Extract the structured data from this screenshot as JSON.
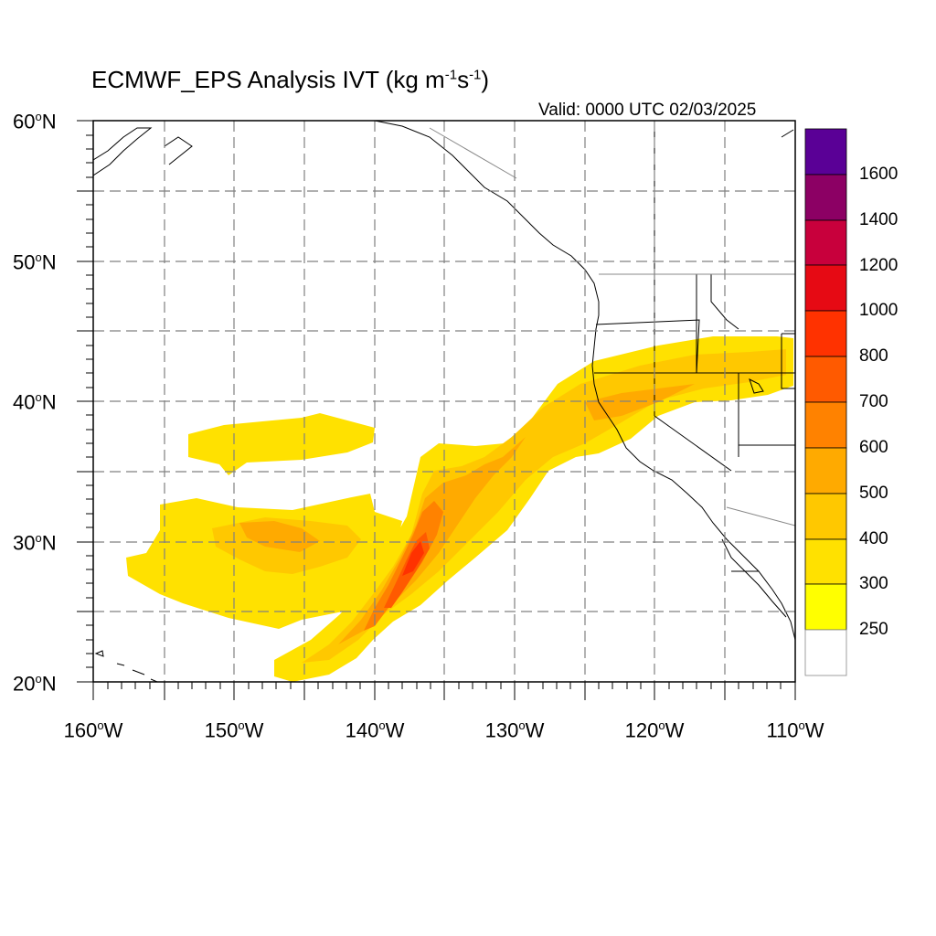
{
  "title": {
    "main": "ECMWF_EPS Analysis IVT (kg m",
    "exp1": "-1",
    "mid": "s",
    "exp2": "-1",
    "close": ")"
  },
  "valid_text": "Valid: 0000 UTC 02/03/2025",
  "lat_labels": [
    {
      "value": "60",
      "deg": "o",
      "hemi": "N"
    },
    {
      "value": "50",
      "deg": "o",
      "hemi": "N"
    },
    {
      "value": "40",
      "deg": "o",
      "hemi": "N"
    },
    {
      "value": "30",
      "deg": "o",
      "hemi": "N"
    },
    {
      "value": "20",
      "deg": "o",
      "hemi": "N"
    }
  ],
  "lon_labels": [
    {
      "value": "160",
      "deg": "o",
      "hemi": "W"
    },
    {
      "value": "150",
      "deg": "o",
      "hemi": "W"
    },
    {
      "value": "140",
      "deg": "o",
      "hemi": "W"
    },
    {
      "value": "130",
      "deg": "o",
      "hemi": "W"
    },
    {
      "value": "120",
      "deg": "o",
      "hemi": "W"
    },
    {
      "value": "110",
      "deg": "o",
      "hemi": "W"
    }
  ],
  "colorbar": {
    "levels": [
      "1600",
      "1400",
      "1200",
      "1000",
      "800",
      "700",
      "600",
      "500",
      "400",
      "300",
      "250"
    ],
    "colors_top_to_bottom": [
      "#5a0096",
      "#8c0064",
      "#c8003c",
      "#e60a14",
      "#ff3200",
      "#ff5a00",
      "#ff8200",
      "#ffaa00",
      "#ffc800",
      "#ffe100",
      "#ffff00",
      "#ffffff"
    ]
  },
  "map": {
    "lon_range": [
      -160,
      -110
    ],
    "lat_range": [
      20,
      60
    ],
    "grid": "dashed every 5 degrees",
    "field": "IVT shading"
  }
}
